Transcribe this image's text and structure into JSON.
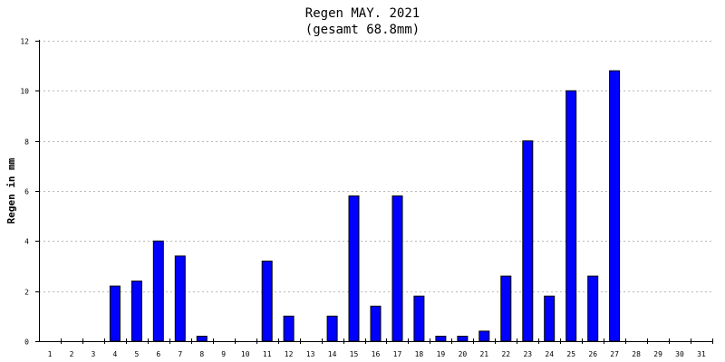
{
  "chart_data": {
    "type": "bar",
    "title": "Regen MAY. 2021",
    "subtitle": "(gesamt 68.8mm)",
    "xlabel": "",
    "ylabel": "Regen in mm",
    "ylim": [
      0,
      12
    ],
    "yticks": [
      "0",
      "2",
      "4",
      "6",
      "8",
      "10",
      "12"
    ],
    "grid": true,
    "categories": [
      "1",
      "2",
      "3",
      "4",
      "5",
      "6",
      "7",
      "8",
      "9",
      "10",
      "11",
      "12",
      "13",
      "14",
      "15",
      "16",
      "17",
      "18",
      "19",
      "20",
      "21",
      "22",
      "23",
      "24",
      "25",
      "26",
      "27",
      "28",
      "29",
      "30",
      "31"
    ],
    "values": [
      0,
      0,
      0,
      2.2,
      2.4,
      4.0,
      3.4,
      0.2,
      0,
      0,
      3.2,
      1.0,
      0,
      1.0,
      5.8,
      1.4,
      5.8,
      1.8,
      0.2,
      0.2,
      0.4,
      2.6,
      8.0,
      1.8,
      10.0,
      2.6,
      10.8,
      0,
      0,
      0,
      0
    ],
    "bar_color": "#0000ff",
    "bar_stroke": "#000000"
  }
}
